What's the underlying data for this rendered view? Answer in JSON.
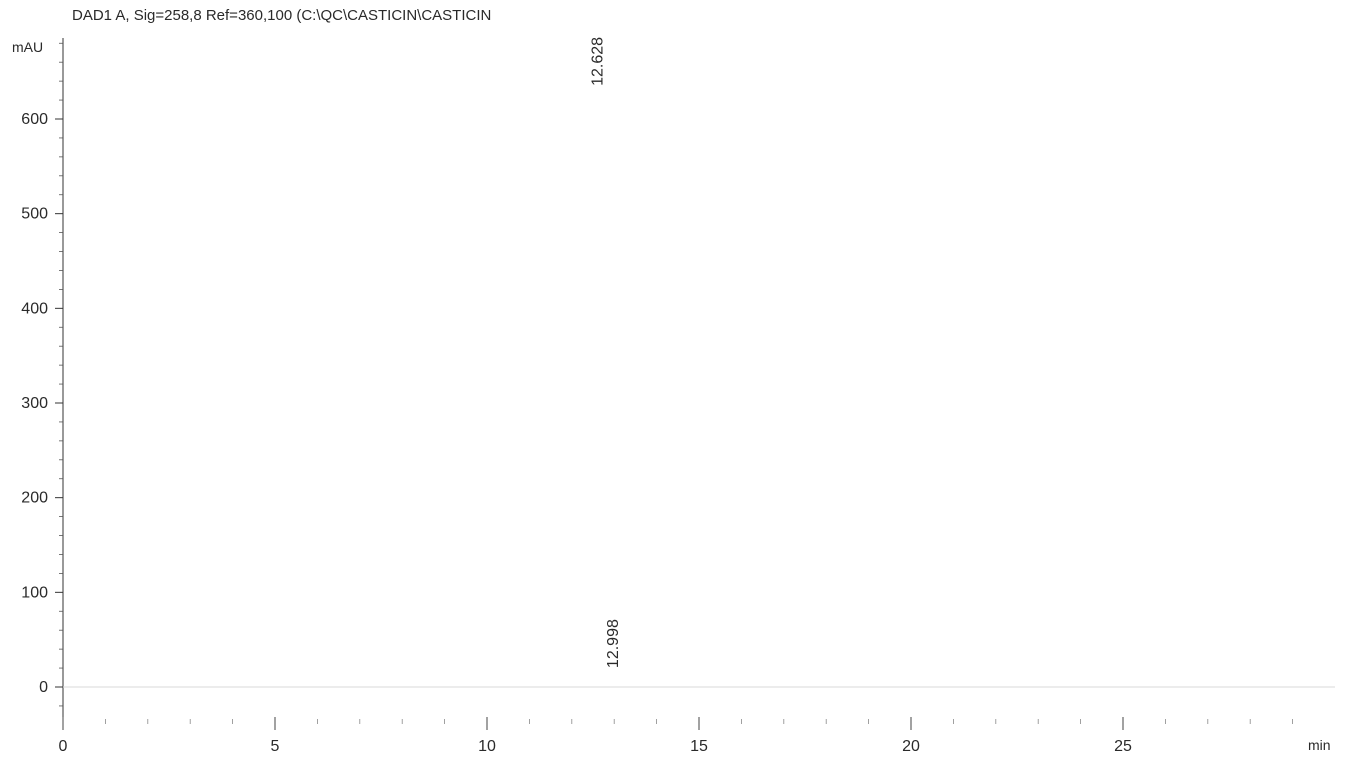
{
  "chart_data": {
    "type": "line",
    "title": "DAD1 A, Sig=258,8 Ref=360,100 (C:\\QC\\CASTICIN\\CASTICIN",
    "ylabel": "mAU",
    "xlabel": "min",
    "xlim": [
      0,
      30
    ],
    "ylim": [
      -40,
      680
    ],
    "x_ticks": [
      0,
      5,
      10,
      15,
      20,
      25
    ],
    "y_ticks": [
      0,
      100,
      200,
      300,
      400,
      500,
      600
    ],
    "grid": false,
    "series": [
      {
        "x": [
          0,
          12.45,
          12.628,
          12.8,
          13.5,
          30
        ],
        "y": [
          0,
          0,
          0,
          0,
          0,
          0
        ]
      }
    ],
    "annotations": [
      {
        "text": "12.628",
        "x": 12.628,
        "y": 635
      },
      {
        "text": "12.998",
        "x": 12.998,
        "y": 20
      }
    ]
  }
}
